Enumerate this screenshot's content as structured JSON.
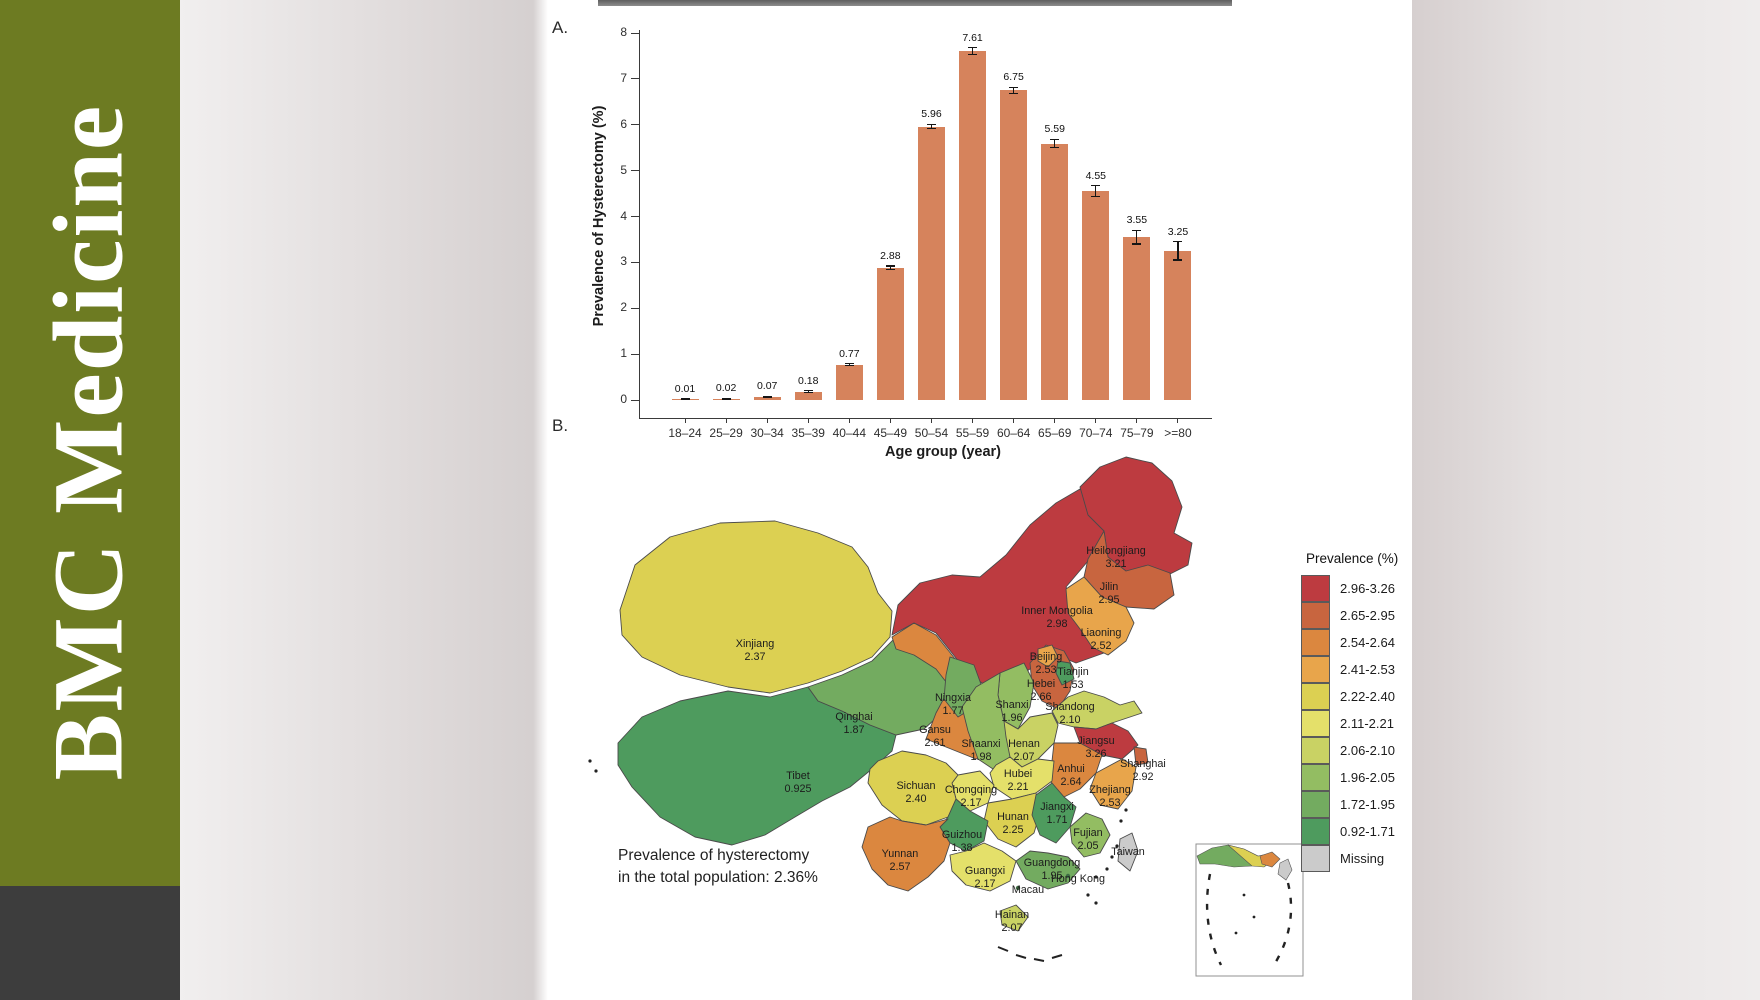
{
  "journal": {
    "name": "BMC Medicine",
    "brand_bg": "#6d7b22",
    "brand_text_color": "#ffffff"
  },
  "figure": {
    "panel_a": "A.",
    "panel_b": "B."
  },
  "chart_data": [
    {
      "type": "bar",
      "title": "",
      "xlabel": "Age group (year)",
      "ylabel": "Prevalence of Hysterectomy (%)",
      "categories": [
        "18–24",
        "25–29",
        "30–34",
        "35–39",
        "40–44",
        "45–49",
        "50–54",
        "55–59",
        "60–64",
        "65–69",
        "70–74",
        "75–79",
        ">=80"
      ],
      "values": [
        0.01,
        0.02,
        0.07,
        0.18,
        0.77,
        2.88,
        5.96,
        7.61,
        6.75,
        5.59,
        4.55,
        3.55,
        3.25
      ],
      "value_labels": [
        "0.01",
        "0.02",
        "0.07",
        "0.18",
        "0.77",
        "2.88",
        "5.96",
        "7.61",
        "6.75",
        "5.59",
        "4.55",
        "3.55",
        "3.25"
      ],
      "errors": [
        0.005,
        0.008,
        0.012,
        0.02,
        0.025,
        0.04,
        0.05,
        0.07,
        0.07,
        0.09,
        0.12,
        0.15,
        0.2
      ],
      "ylim": [
        0,
        8
      ],
      "yticks": [
        0,
        1,
        2,
        3,
        4,
        5,
        6,
        7,
        8
      ],
      "grid": false,
      "bar_color": "#d6835c"
    },
    {
      "type": "choropleth",
      "annotation": [
        "Prevalence of hysterectomy",
        "in the total population: 2.36%"
      ],
      "regions": [
        {
          "name": "Xinjiang",
          "value": "2.37",
          "color": "#dcd052"
        },
        {
          "name": "Tibet",
          "value": "0.925",
          "color": "#4e9b5e"
        },
        {
          "name": "Qinghai",
          "value": "1.87",
          "color": "#73ab60"
        },
        {
          "name": "Inner Mongolia",
          "value": "2.98",
          "color": "#bd3b40"
        },
        {
          "name": "Gansu",
          "value": "2.61",
          "color": "#db873f"
        },
        {
          "name": "Ningxia",
          "value": "1.77",
          "color": "#73ab60"
        },
        {
          "name": "Heilongjiang",
          "value": "3.21",
          "color": "#bd3b40"
        },
        {
          "name": "Jilin",
          "value": "2.95",
          "color": "#c8653f"
        },
        {
          "name": "Liaoning",
          "value": "2.52",
          "color": "#e8a54b"
        },
        {
          "name": "Hebei",
          "value": "2.66",
          "color": "#c8653f"
        },
        {
          "name": "Shanxi",
          "value": "1.96",
          "color": "#93bd62"
        },
        {
          "name": "Shaanxi",
          "value": "1.98",
          "color": "#93bd62"
        },
        {
          "name": "Shandong",
          "value": "2.10",
          "color": "#c9d264"
        },
        {
          "name": "Henan",
          "value": "2.07",
          "color": "#c9d264"
        },
        {
          "name": "Jiangsu",
          "value": "3.26",
          "color": "#bd3b40"
        },
        {
          "name": "Anhui",
          "value": "2.64",
          "color": "#db873f"
        },
        {
          "name": "Shanghai",
          "value": "2.92",
          "color": "#c8653f"
        },
        {
          "name": "Zhejiang",
          "value": "2.53",
          "color": "#e8a54b"
        },
        {
          "name": "Hubei",
          "value": "2.21",
          "color": "#e4e06a"
        },
        {
          "name": "Chongqing",
          "value": "2.17",
          "color": "#e4e06a"
        },
        {
          "name": "Sichuan",
          "value": "2.40",
          "color": "#dcd052"
        },
        {
          "name": "Hunan",
          "value": "2.25",
          "color": "#dcd052"
        },
        {
          "name": "Jiangxi",
          "value": "1.71",
          "color": "#4e9b5e"
        },
        {
          "name": "Guizhou",
          "value": "1.38",
          "color": "#4e9b5e"
        },
        {
          "name": "Yunnan",
          "value": "2.57",
          "color": "#db873f"
        },
        {
          "name": "Guangxi",
          "value": "2.17",
          "color": "#e4e06a"
        },
        {
          "name": "Guangdong",
          "value": "1.95",
          "color": "#73ab60"
        },
        {
          "name": "Fujian",
          "value": "2.05",
          "color": "#93bd62"
        },
        {
          "name": "Hainan",
          "value": "2.07",
          "color": "#c9d264"
        },
        {
          "name": "Beijing",
          "value": "2.53",
          "color": "#e8a54b"
        },
        {
          "name": "Tianjin",
          "value": "1.53",
          "color": "#4e9b5e"
        }
      ],
      "no_value_regions": [
        {
          "name": "Taiwan",
          "color": "#cbcbcb"
        }
      ],
      "territory_labels": [
        "Hong Kong",
        "Macau"
      ],
      "legend": {
        "title": "Prevalence (%)",
        "classes": [
          {
            "range": "2.96-3.26",
            "color": "#bd3b40"
          },
          {
            "range": "2.65-2.95",
            "color": "#c8653f"
          },
          {
            "range": "2.54-2.64",
            "color": "#db873f"
          },
          {
            "range": "2.41-2.53",
            "color": "#e8a54b"
          },
          {
            "range": "2.22-2.40",
            "color": "#dcd052"
          },
          {
            "range": "2.11-2.21",
            "color": "#e4e06a"
          },
          {
            "range": "2.06-2.10",
            "color": "#c9d264"
          },
          {
            "range": "1.96-2.05",
            "color": "#93bd62"
          },
          {
            "range": "1.72-1.95",
            "color": "#73ab60"
          },
          {
            "range": "0.92-1.71",
            "color": "#4e9b5e"
          }
        ],
        "missing": {
          "label": "Missing",
          "color": "#cbcbcb"
        }
      }
    }
  ]
}
